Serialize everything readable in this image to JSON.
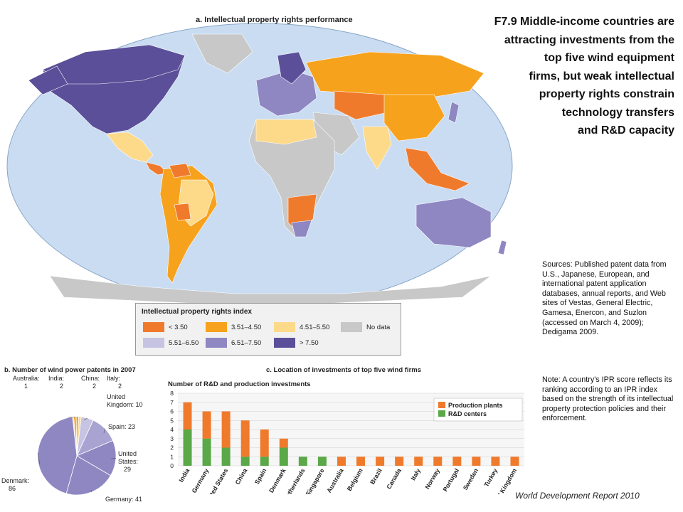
{
  "title": "F7.9 Middle-income countries are attracting investments from the top five wind equipment firms, but weak intellectual property rights constrain technology transfers and R&D capacity",
  "title_lines": [
    "F7.9 Middle-income countries are",
    "attracting investments from the",
    "top five wind equipment",
    "firms, but weak intellectual",
    "property rights constrain",
    "technology transfers",
    "and R&D capacity"
  ],
  "map": {
    "heading": "a. Intellectual property rights performance",
    "colors": {
      "ocean": "#c9dcf2",
      "land_nodata": "#c8c8c8",
      "lt350": "#f07a2c",
      "r351_450": "#f7a21d",
      "r451_550": "#fdd98a",
      "r551_650": "#c7c3e2",
      "r651_750": "#8f87c2",
      "gt750": "#5b4f99"
    }
  },
  "legend": {
    "title": "Intellectual property rights index",
    "items": [
      {
        "label": "< 3.50",
        "color": "#f07a2c"
      },
      {
        "label": "3.51–4.50",
        "color": "#f7a21d"
      },
      {
        "label": "4.51–5.50",
        "color": "#fdd98a"
      },
      {
        "label": "No data",
        "color": "#c8c8c8"
      },
      {
        "label": "5.51–6.50",
        "color": "#c7c3e2"
      },
      {
        "label": "6.51–7.50",
        "color": "#8f87c2"
      },
      {
        "label": "> 7.50",
        "color": "#5b4f99"
      }
    ]
  },
  "sources": "Sources: Published patent data from U.S., Japanese, European, and international patent application databases, annual reports, and Web sites of Vestas, General Electric, Gamesa, Enercon, and Suzlon (accessed on March 4, 2009); Dedigama 2009.",
  "note": "Note: A country's IPR score reflects its ranking according to an IPR index based on the strength of its intellectual property protection policies and their enforcement.",
  "footer": "World Development Report 2010",
  "chart_data": [
    {
      "type": "pie",
      "title": "b. Number of wind power patents in 2007",
      "slices": [
        {
          "label": "Denmark",
          "value": 86,
          "color": "#8f87c2"
        },
        {
          "label": "Germany",
          "value": 41,
          "color": "#8f87c2"
        },
        {
          "label": "United States",
          "value": 29,
          "color": "#8f87c2"
        },
        {
          "label": "Spain",
          "value": 23,
          "color": "#a9a3d2"
        },
        {
          "label": "United Kingdom",
          "value": 10,
          "color": "#c7c3e2"
        },
        {
          "label": "Italy",
          "value": 2,
          "color": "#fdd98a"
        },
        {
          "label": "China",
          "value": 2,
          "color": "#f7a21d"
        },
        {
          "label": "India",
          "value": 2,
          "color": "#f7a21d"
        },
        {
          "label": "Australia",
          "value": 1,
          "color": "#fdd98a"
        }
      ]
    },
    {
      "type": "bar",
      "stacked": true,
      "title": "c. Location of investments of top five wind firms",
      "ylabel": "Number of R&D and production investments",
      "ylim": [
        0,
        8
      ],
      "yticks": [
        0,
        1,
        2,
        3,
        4,
        5,
        6,
        7,
        8
      ],
      "grid": true,
      "legend_position": "top-right",
      "categories": [
        "India",
        "Germany",
        "United States",
        "China",
        "Spain",
        "Denmark",
        "Netherlands",
        "Singapore",
        "Australia",
        "Belgium",
        "Brazil",
        "Canada",
        "Italy",
        "Norway",
        "Portugal",
        "Sweden",
        "Turkey",
        "United Kingdom"
      ],
      "series": [
        {
          "name": "R&D centers",
          "color": "#5aa847",
          "values": [
            4,
            3,
            2,
            1,
            1,
            2,
            1,
            1,
            0,
            0,
            0,
            0,
            0,
            0,
            0,
            0,
            0,
            0
          ]
        },
        {
          "name": "Production plants",
          "color": "#f07a2c",
          "values": [
            3,
            3,
            4,
            4,
            3,
            1,
            0,
            0,
            1,
            1,
            1,
            1,
            1,
            1,
            1,
            1,
            1,
            1
          ]
        }
      ],
      "legend_order": [
        "Production plants",
        "R&D centers"
      ]
    }
  ]
}
